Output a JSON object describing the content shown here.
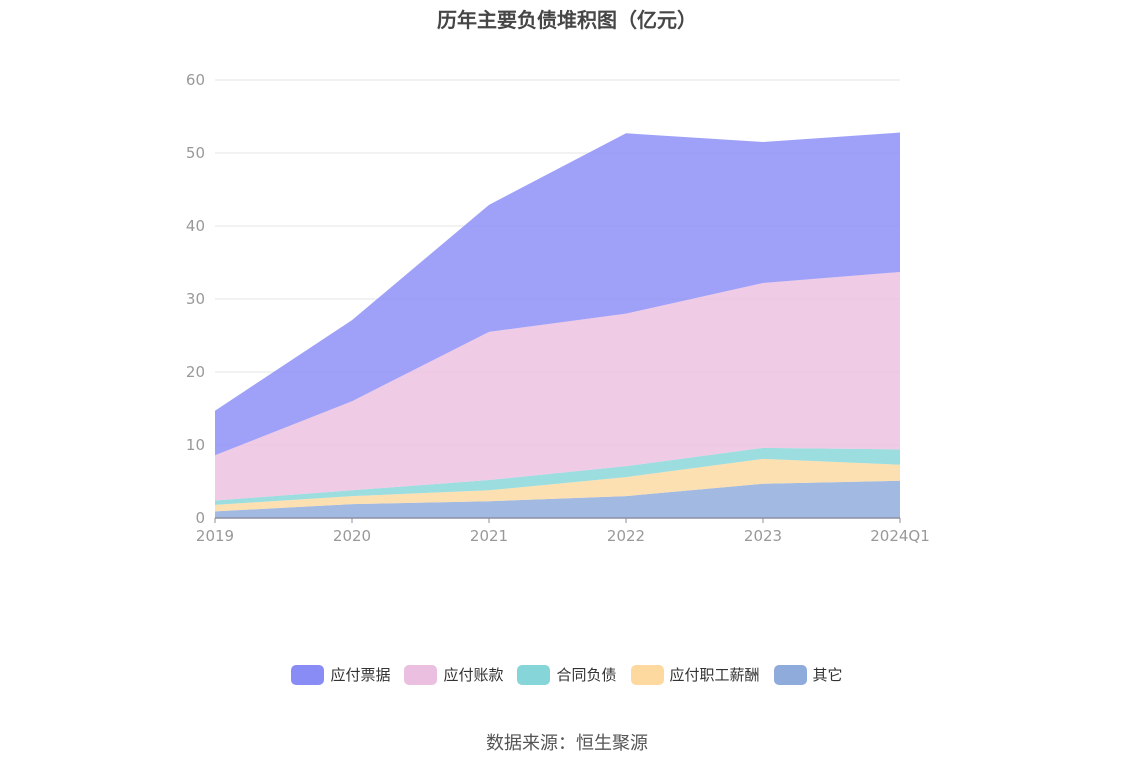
{
  "title": "历年主要负债堆积图（亿元）",
  "source": "数据来源：恒生聚源",
  "chart_data": {
    "type": "area",
    "stacked": true,
    "title": "历年主要负债堆积图（亿元）",
    "categories": [
      "2019",
      "2020",
      "2021",
      "2022",
      "2023",
      "2024Q1"
    ],
    "ylim": [
      0,
      60
    ],
    "yticks": [
      0,
      10,
      20,
      30,
      40,
      50,
      60
    ],
    "grid": true,
    "legend_position": "bottom",
    "series": [
      {
        "name": "其它",
        "color": "#8eabdc",
        "values": [
          0.9,
          1.9,
          2.3,
          3.0,
          4.7,
          5.1
        ]
      },
      {
        "name": "应付职工薪酬",
        "color": "#fdd9a0",
        "values": [
          0.9,
          1.1,
          1.5,
          2.6,
          3.4,
          2.2
        ]
      },
      {
        "name": "合同负债",
        "color": "#86d5d8",
        "values": [
          0.6,
          0.8,
          1.4,
          1.5,
          1.5,
          2.1
        ]
      },
      {
        "name": "应付账款",
        "color": "#ebbfdf",
        "values": [
          6.2,
          12.2,
          20.3,
          20.9,
          22.6,
          24.3
        ]
      },
      {
        "name": "应付票据",
        "color": "#8a8cf6",
        "values": [
          6.1,
          11.1,
          17.4,
          24.7,
          19.3,
          19.1
        ]
      }
    ],
    "legend_order": [
      "应付票据",
      "应付账款",
      "合同负债",
      "应付职工薪酬",
      "其它"
    ]
  }
}
